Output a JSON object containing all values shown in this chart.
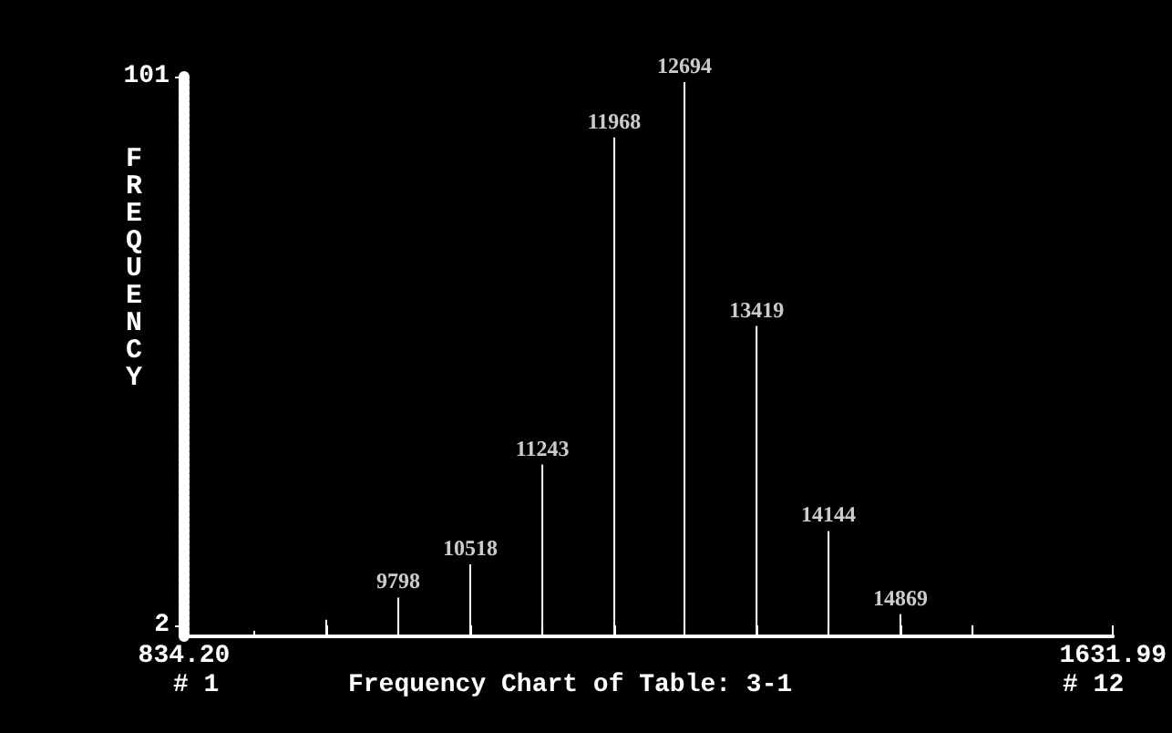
{
  "chart_data": {
    "type": "bar",
    "title": "Frequency Chart of Table: 3-1",
    "ylabel": "FREQUENCY",
    "x": [
      894.5,
      956.3,
      1018.2,
      1080.0,
      1141.9,
      1203.7,
      1264.0,
      1325.9,
      1387.7,
      1449.5,
      1511.4
    ],
    "values": [
      1,
      3,
      7,
      13,
      31,
      90,
      100,
      56,
      19,
      4,
      2
    ],
    "color": "#ffffff",
    "xlim": [
      834.2,
      1631.99
    ],
    "xticks": [
      {
        "value": 834.2,
        "label": "834.20"
      },
      {
        "value": 956.3,
        "label": null
      },
      {
        "value": 1018.2,
        "label": null
      },
      {
        "value": 1080.0,
        "label": null
      },
      {
        "value": 1141.9,
        "label": null
      },
      {
        "value": 1203.7,
        "label": null
      },
      {
        "value": 1264.0,
        "label": null
      },
      {
        "value": 1325.9,
        "label": null
      },
      {
        "value": 1387.7,
        "label": null
      },
      {
        "value": 1449.5,
        "label": null
      },
      {
        "value": 1511.4,
        "label": null
      },
      {
        "value": 1631.99,
        "label": "1631.99"
      }
    ],
    "ylim": [
      0,
      101
    ],
    "yticks": [
      2,
      101
    ],
    "grid": false,
    "annotations": [
      {
        "text": "9798",
        "x": 1018.2,
        "y": 7
      },
      {
        "text": "10518",
        "x": 1080.0,
        "y": 13
      },
      {
        "text": "11243",
        "x": 1141.9,
        "y": 31
      },
      {
        "text": "11968",
        "x": 1203.7,
        "y": 90
      },
      {
        "text": "12694",
        "x": 1264.0,
        "y": 100
      },
      {
        "text": "13419",
        "x": 1325.9,
        "y": 56
      },
      {
        "text": "14144",
        "x": 1387.7,
        "y": 19
      },
      {
        "text": "14869",
        "x": 1449.5,
        "y": 4
      },
      "# 1",
      "# 12"
    ]
  }
}
